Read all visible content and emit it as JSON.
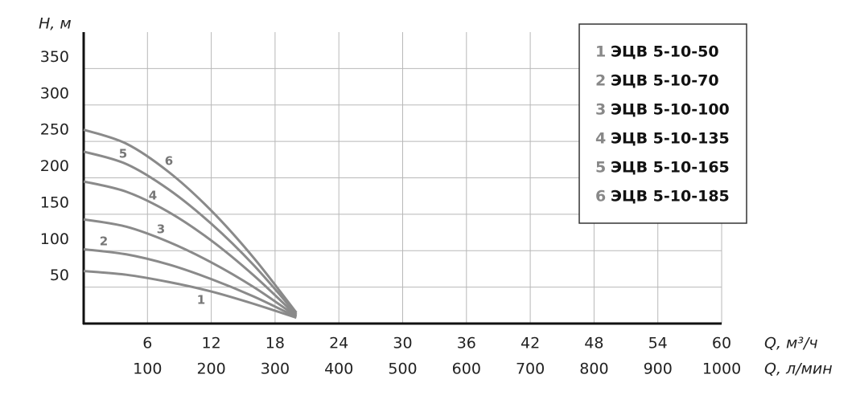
{
  "chart_data": {
    "type": "line",
    "y_label": "H, м",
    "x_label": "Q, м³/ч",
    "x2_label": "Q, л/мин",
    "x": [
      0,
      4,
      8,
      12,
      16,
      20
    ],
    "series": [
      {
        "label": "1",
        "name": "ЭЦВ 5-10-50",
        "color": "#8a8a8a",
        "values": [
          72,
          67,
          57,
          44,
          27,
          8
        ]
      },
      {
        "label": "2",
        "name": "ЭЦВ 5-10-70",
        "color": "#8a8a8a",
        "values": [
          102,
          95,
          81,
          61,
          37,
          9
        ]
      },
      {
        "label": "3",
        "name": "ЭЦВ 5-10-100",
        "color": "#8a8a8a",
        "values": [
          143,
          133,
          112,
          84,
          50,
          10
        ]
      },
      {
        "label": "4",
        "name": "ЭЦВ 5-10-135",
        "color": "#8a8a8a",
        "values": [
          195,
          181,
          153,
          114,
          66,
          11
        ]
      },
      {
        "label": "5",
        "name": "ЭЦВ 5-10-165",
        "color": "#8a8a8a",
        "values": [
          236,
          219,
          184,
          137,
          80,
          13
        ]
      },
      {
        "label": "6",
        "name": "ЭЦВ 5-10-185",
        "color": "#8a8a8a",
        "values": [
          266,
          247,
          208,
          155,
          90,
          15
        ]
      }
    ],
    "xlim": [
      0,
      60
    ],
    "xticks": [
      6,
      12,
      18,
      24,
      30,
      36,
      42,
      48,
      54,
      60
    ],
    "x2lim": [
      0,
      1000
    ],
    "x2ticks": [
      100,
      200,
      300,
      400,
      500,
      600,
      700,
      800,
      900,
      1000
    ],
    "ylim": [
      0,
      400
    ],
    "yticks": [
      50,
      100,
      150,
      200,
      250,
      300,
      350
    ],
    "grid": true,
    "legend": "upper right"
  }
}
